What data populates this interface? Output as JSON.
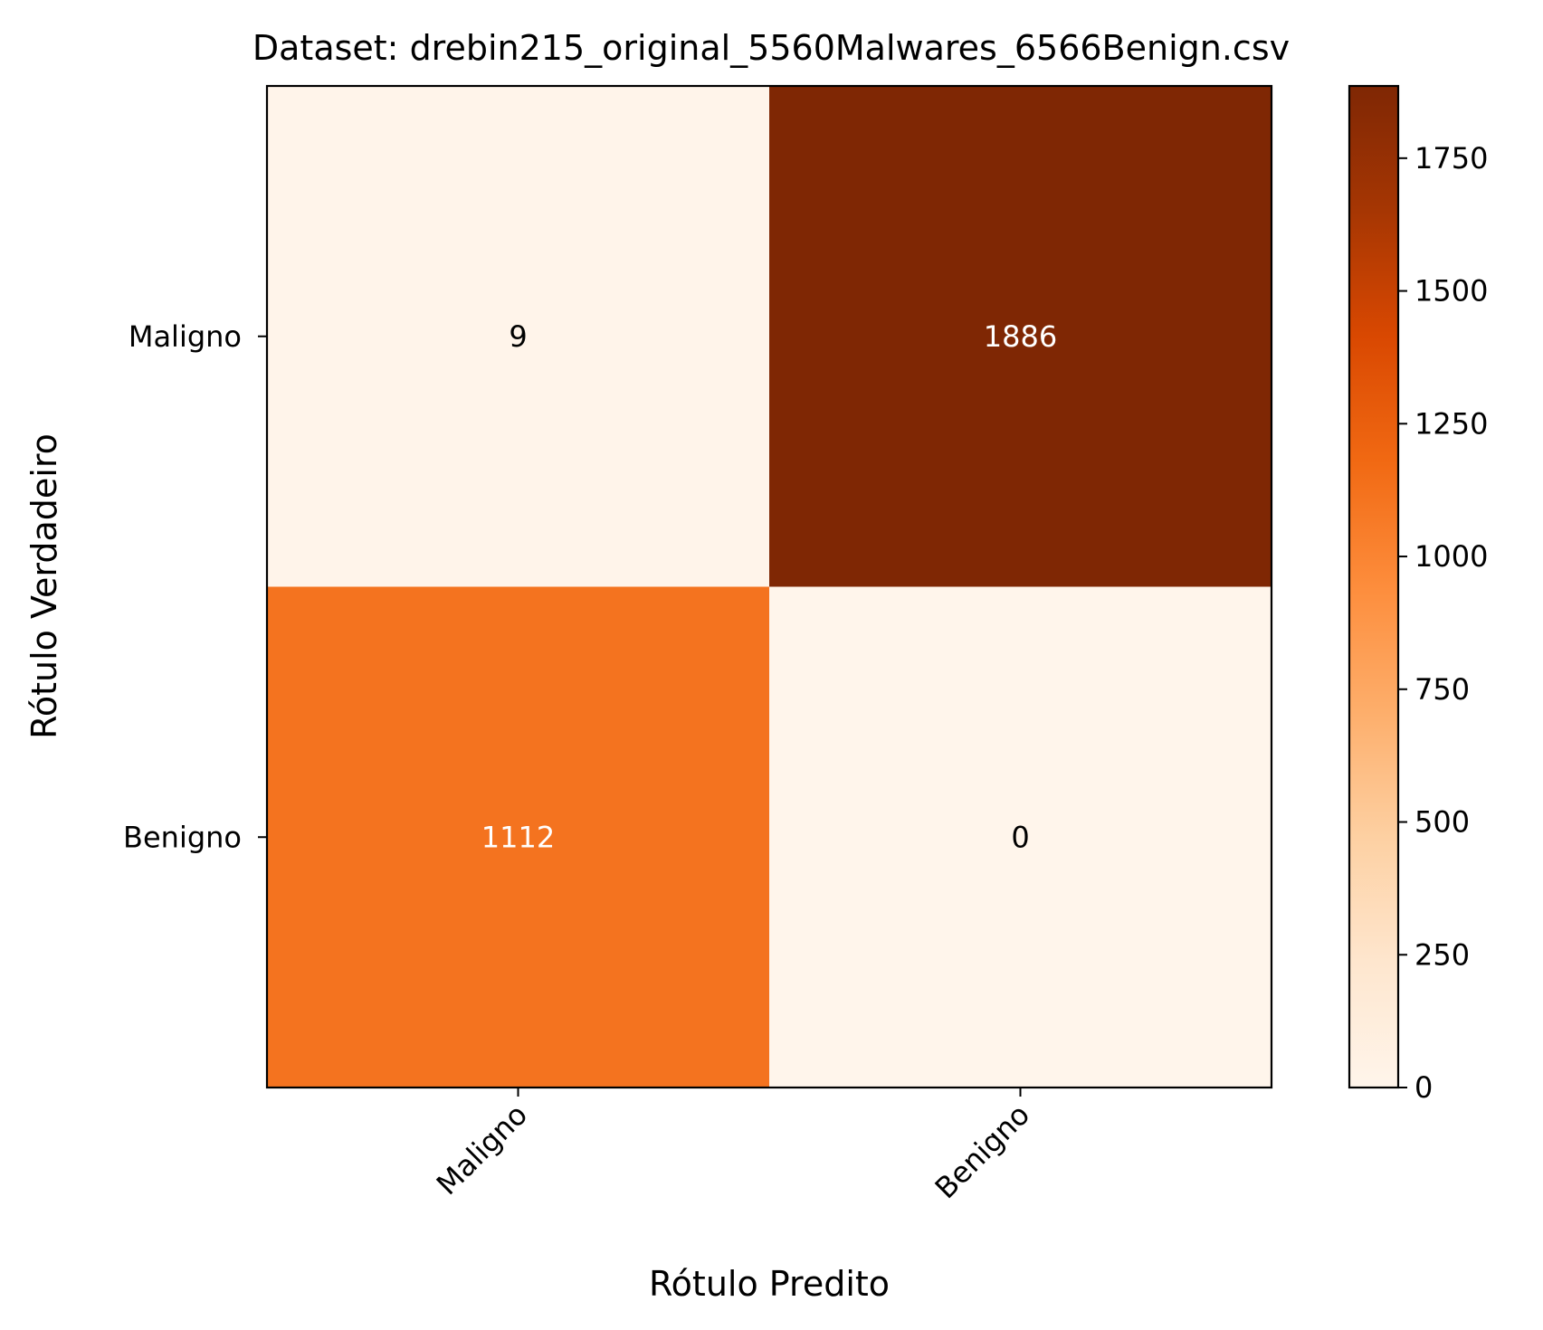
{
  "chart_data": {
    "type": "heatmap",
    "title": "Dataset: drebin215_original_5560Malwares_6566Benign.csv",
    "xlabel": "Rótulo Predito",
    "ylabel": "Rótulo Verdadeiro",
    "x_categories": [
      "Maligno",
      "Benigno"
    ],
    "y_categories": [
      "Maligno",
      "Benigno"
    ],
    "values": [
      [
        9,
        1886
      ],
      [
        1112,
        0
      ]
    ],
    "cell_labels": [
      [
        "9",
        "1886"
      ],
      [
        "1112",
        "0"
      ]
    ],
    "colormap": "Oranges",
    "colorbar": {
      "min": 0,
      "max": 1886,
      "ticks": [
        0,
        250,
        500,
        750,
        1000,
        1250,
        1500,
        1750
      ],
      "tick_labels": [
        "0",
        "250",
        "500",
        "750",
        "1000",
        "1250",
        "1500",
        "1750"
      ]
    },
    "grid": false
  }
}
